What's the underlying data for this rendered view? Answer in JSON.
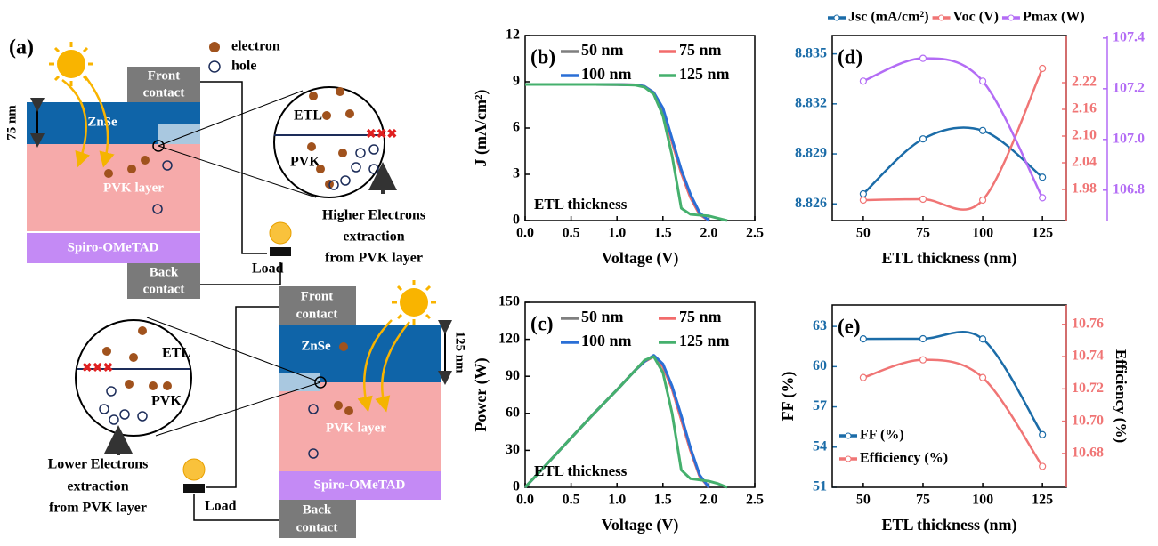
{
  "diagram": {
    "label": "(a)",
    "legend": [
      "electron",
      "hole"
    ],
    "top": {
      "front_contact": [
        "Front",
        "contact"
      ],
      "thickness": "75 nm",
      "etl": "ZnSe",
      "absorber": "PVK layer",
      "htl": "Spiro-OMeTAD",
      "back_contact": [
        "Back",
        "contact"
      ],
      "load": "Load",
      "zoom": {
        "etl": "ETL",
        "pvk": "PVK"
      },
      "caption": [
        "Higher Electrons",
        "extraction",
        "from PVK layer"
      ]
    },
    "bottom": {
      "front_contact": [
        "Front",
        "contact"
      ],
      "thickness": "125 nm",
      "etl": "ZnSe",
      "absorber": "PVK layer",
      "htl": "Spiro-OMeTAD",
      "back_contact": [
        "Back",
        "contact"
      ],
      "load": "Load",
      "zoom": {
        "etl": "ETL",
        "pvk": "PVK"
      },
      "caption": [
        "Lower Electrons",
        "extraction",
        "from PVK layer"
      ]
    }
  },
  "chart_data": [
    {
      "type": "line",
      "panel_label": "(b)",
      "annotation": "ETL thickness",
      "xlabel": "Voltage (V)",
      "ylabel": "J (mA/cm²)",
      "legend": "upper right",
      "x": [
        0,
        0.25,
        0.5,
        0.75,
        1,
        1.2,
        1.3,
        1.4,
        1.5,
        1.6,
        1.7,
        1.8,
        1.9,
        2,
        2.1,
        2.2
      ],
      "series": [
        {
          "name": "50 nm",
          "color": "#7f7f7f",
          "values": [
            8.83,
            8.83,
            8.83,
            8.83,
            8.82,
            8.8,
            8.7,
            8.3,
            7.2,
            5.1,
            3.1,
            1.5,
            0.4,
            0,
            null,
            null
          ]
        },
        {
          "name": "75 nm",
          "color": "#f26b6b",
          "values": [
            8.83,
            8.83,
            8.83,
            8.83,
            8.82,
            8.8,
            8.7,
            8.3,
            7.2,
            5.1,
            3.1,
            1.5,
            0.4,
            0,
            null,
            null
          ]
        },
        {
          "name": "100 nm",
          "color": "#2a6fd6",
          "values": [
            8.83,
            8.83,
            8.83,
            8.83,
            8.82,
            8.8,
            8.7,
            8.3,
            7.3,
            5.3,
            3.3,
            1.7,
            0.5,
            0,
            null,
            null
          ]
        },
        {
          "name": "125 nm",
          "color": "#45b06d",
          "values": [
            8.83,
            8.83,
            8.83,
            8.83,
            8.82,
            8.78,
            8.65,
            8.2,
            6.8,
            4.2,
            0.8,
            0.4,
            0.35,
            0.3,
            0.15,
            0
          ]
        }
      ],
      "xlim": [
        0,
        2.5
      ],
      "xticks": [
        {
          "value": 0,
          "label": "0.0"
        },
        0.5,
        {
          "value": 1,
          "label": "1.0"
        },
        1.5,
        {
          "value": 2,
          "label": "2.0"
        },
        2.5
      ],
      "ylim": [
        0,
        12
      ],
      "yticks": [
        0,
        3,
        6,
        9,
        12
      ]
    },
    {
      "type": "line",
      "panel_label": "(c)",
      "annotation": "ETL thickness",
      "xlabel": "Voltage (V)",
      "ylabel": "Power (W)",
      "legend": "upper right",
      "x": [
        0,
        0.25,
        0.5,
        0.75,
        1,
        1.2,
        1.3,
        1.4,
        1.5,
        1.6,
        1.7,
        1.8,
        1.9,
        2,
        2.1,
        2.2
      ],
      "series": [
        {
          "name": "50 nm",
          "color": "#7f7f7f",
          "values": [
            0,
            20,
            40,
            60,
            79,
            95,
            102,
            106,
            98,
            80,
            55,
            30,
            9,
            0,
            null,
            null
          ]
        },
        {
          "name": "75 nm",
          "color": "#f26b6b",
          "values": [
            0,
            20,
            40,
            60,
            79,
            95,
            102,
            106,
            98,
            80,
            55,
            30,
            9,
            0,
            null,
            null
          ]
        },
        {
          "name": "100 nm",
          "color": "#2a6fd6",
          "values": [
            0,
            20,
            40,
            60,
            79,
            95,
            102,
            107,
            100,
            82,
            58,
            32,
            10,
            0,
            null,
            null
          ]
        },
        {
          "name": "125 nm",
          "color": "#45b06d",
          "values": [
            0,
            20,
            40,
            60,
            79,
            95,
            103,
            106,
            93,
            60,
            14,
            7,
            6,
            5,
            3,
            0
          ]
        }
      ],
      "xlim": [
        0,
        2.5
      ],
      "xticks": [
        {
          "value": 0,
          "label": "0.0"
        },
        0.5,
        {
          "value": 1,
          "label": "1.0"
        },
        1.5,
        {
          "value": 2,
          "label": "2.0"
        },
        2.5
      ],
      "ylim": [
        0,
        150
      ],
      "yticks": [
        0,
        30,
        60,
        90,
        120,
        150
      ]
    },
    {
      "type": "line",
      "panel_label": "(d)",
      "xlabel": "ETL thickness (nm)",
      "legend": "top",
      "smooth": true,
      "markers": true,
      "x": [
        50,
        75,
        100,
        125
      ],
      "series": [
        {
          "name": "Jsc (mA/cm²)",
          "color": "#1b6ca8",
          "axis": "y",
          "values": [
            8.8266,
            8.8299,
            8.8304,
            8.8276
          ]
        },
        {
          "name": "Voc (V)",
          "color": "#f07575",
          "axis": "y2",
          "values": [
            1.956,
            1.958,
            1.956,
            2.252
          ]
        },
        {
          "name": "Pmax (W)",
          "color": "#b36cf5",
          "axis": "y3",
          "values": [
            107.23,
            107.32,
            107.23,
            106.77
          ]
        }
      ],
      "xlim": [
        37,
        135
      ],
      "xticks": [
        50,
        75,
        100,
        125
      ],
      "ylim": [
        8.825,
        8.8361
      ],
      "yticks": [
        8.826,
        8.829,
        8.832,
        8.835
      ],
      "y2lim": [
        1.91,
        2.326
      ],
      "y2ticks": [
        1.98,
        2.04,
        {
          "value": 2.1,
          "label": "2.10"
        },
        2.16,
        2.22
      ],
      "y3lim": [
        106.68,
        107.41
      ],
      "y3ticks": [
        106.8,
        {
          "value": 107,
          "label": "107.0"
        },
        107.2,
        107.4
      ]
    },
    {
      "type": "line",
      "panel_label": "(e)",
      "xlabel": "ETL thickness (nm)",
      "ylabel": "FF (%)",
      "y2label": "Efficiency (%)",
      "legend": "lower left",
      "smooth": true,
      "markers": true,
      "x": [
        50,
        75,
        100,
        125
      ],
      "series": [
        {
          "name": "FF (%)",
          "color": "#1b6ca8",
          "axis": "y",
          "values": [
            62.07,
            62.08,
            62.06,
            54.93
          ]
        },
        {
          "name": "Efficiency (%)",
          "color": "#f07575",
          "axis": "y2",
          "values": [
            10.727,
            10.738,
            10.727,
            10.672
          ]
        }
      ],
      "xlim": [
        37,
        135
      ],
      "xticks": [
        50,
        75,
        100,
        125
      ],
      "ylim": [
        51,
        64.6
      ],
      "yticks": [
        51,
        54,
        57,
        60,
        63
      ],
      "y2lim": [
        10.659,
        10.772
      ],
      "y2ticks": [
        {
          "value": 10.68,
          "label": "10.68"
        },
        {
          "value": 10.7,
          "label": "10.70"
        },
        10.72,
        10.74,
        10.76
      ]
    }
  ]
}
